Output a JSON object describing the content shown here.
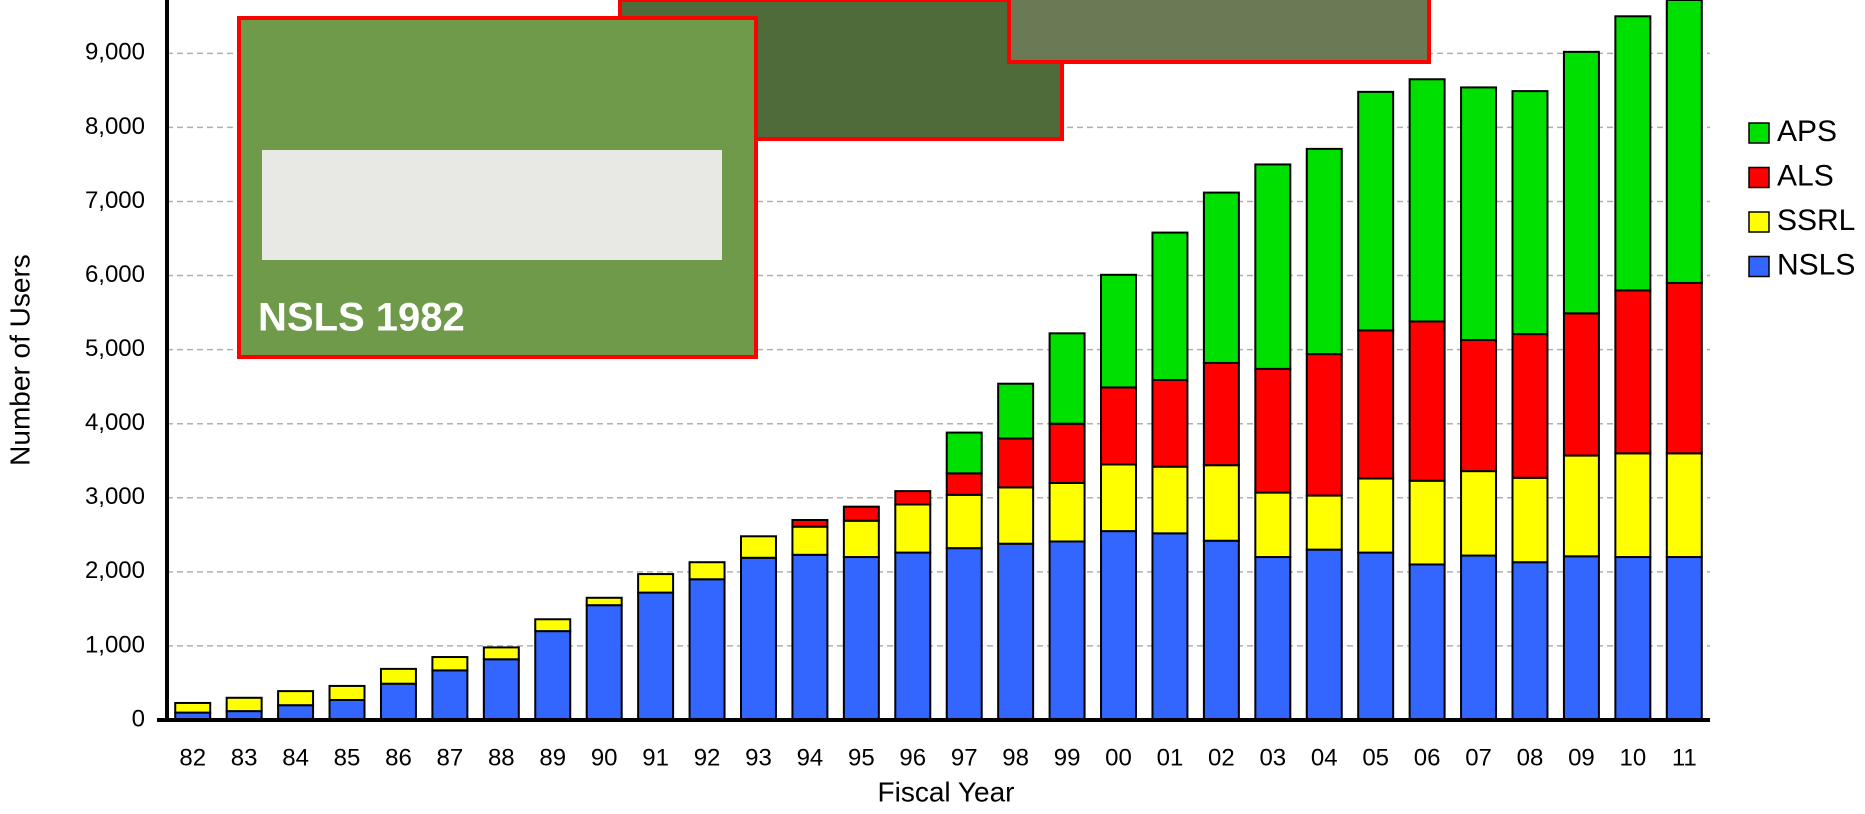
{
  "chart_data": {
    "type": "stacked-bar",
    "x_label": "Fiscal Year",
    "y_label": "Number of Users",
    "photo_caption": "NSLS 1982",
    "categories": [
      "82",
      "83",
      "84",
      "85",
      "86",
      "87",
      "88",
      "89",
      "90",
      "91",
      "92",
      "93",
      "94",
      "95",
      "96",
      "97",
      "98",
      "99",
      "00",
      "01",
      "02",
      "03",
      "04",
      "05",
      "06",
      "07",
      "08",
      "09",
      "10",
      "11"
    ],
    "series": [
      {
        "name": "APS",
        "color": "#00e000",
        "values": [
          null,
          null,
          null,
          null,
          null,
          null,
          null,
          null,
          null,
          null,
          null,
          null,
          null,
          null,
          null,
          550,
          740,
          1220,
          1520,
          1990,
          2300,
          2760,
          2770,
          3220,
          3270,
          3410,
          3280,
          3530,
          3700,
          3820
        ]
      },
      {
        "name": "ALS",
        "color": "#ff0000",
        "values": [
          null,
          null,
          null,
          null,
          null,
          null,
          null,
          null,
          null,
          null,
          null,
          null,
          90,
          190,
          180,
          290,
          660,
          800,
          1040,
          1170,
          1380,
          1670,
          1910,
          2000,
          2150,
          1770,
          1940,
          1920,
          2200,
          2300
        ]
      },
      {
        "name": "SSRL",
        "color": "#ffff00",
        "values": [
          130,
          180,
          190,
          190,
          200,
          180,
          160,
          160,
          100,
          250,
          230,
          290,
          380,
          490,
          650,
          720,
          760,
          790,
          900,
          900,
          1020,
          870,
          730,
          1000,
          1130,
          1140,
          1140,
          1360,
          1400,
          1400
        ]
      },
      {
        "name": "NSLS",
        "color": "#3366ff",
        "values": [
          100,
          120,
          200,
          270,
          490,
          670,
          820,
          1200,
          1550,
          1720,
          1900,
          2190,
          2230,
          2200,
          2260,
          2320,
          2380,
          2410,
          2550,
          2520,
          2420,
          2200,
          2300,
          2260,
          2100,
          2220,
          2130,
          2210,
          2200,
          2200
        ]
      }
    ],
    "ylim": [
      0,
      9720
    ],
    "yticks": [
      0,
      {
        "value": 1000,
        "label": "1,000"
      },
      {
        "value": 2000,
        "label": "2,000"
      },
      {
        "value": 3000,
        "label": "3,000"
      },
      {
        "value": 4000,
        "label": "4,000"
      },
      {
        "value": 5000,
        "label": "5,000"
      },
      {
        "value": 6000,
        "label": "6,000"
      },
      {
        "value": 7000,
        "label": "7,000"
      },
      {
        "value": 8000,
        "label": "8,000"
      },
      {
        "value": 9000,
        "label": "9,000"
      }
    ],
    "grid": true,
    "legend": "right"
  }
}
